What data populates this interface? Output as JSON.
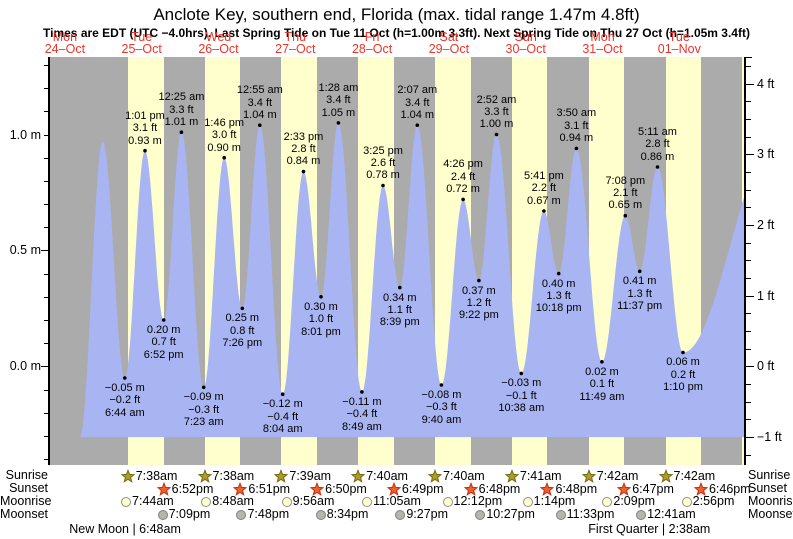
{
  "header": {
    "title": "Anclote Key, southern end, Florida (max. tidal range 1.47m 4.8ft)",
    "subtitle": "Times are EDT (UTC −4.0hrs). Last Spring Tide on Tue 11 Oct (h=1.00m 3.3ft). Next Spring Tide on Thu 27 Oct (h=1.05m 3.4ft)"
  },
  "days": [
    {
      "name": "Mon",
      "date": "24–Oct"
    },
    {
      "name": "Tue",
      "date": "25–Oct"
    },
    {
      "name": "Wed",
      "date": "26–Oct"
    },
    {
      "name": "Thu",
      "date": "27–Oct"
    },
    {
      "name": "Fri",
      "date": "28–Oct"
    },
    {
      "name": "Sat",
      "date": "29–Oct"
    },
    {
      "name": "Sun",
      "date": "30–Oct"
    },
    {
      "name": "Mon",
      "date": "31–Oct"
    },
    {
      "name": "Tue",
      "date": "01–Nov"
    }
  ],
  "chart_data": {
    "type": "area",
    "title": "Anclote Key, southern end, Florida tide curve",
    "x_axis": {
      "label": "days, Mon 24-Oct to Tue 01-Nov; t = hours after Mon 24-Oct 00:00",
      "grid": false
    },
    "y_axis_left": {
      "unit": "m",
      "labels": [
        {
          "v": 1.0,
          "text": "1.0 m"
        },
        {
          "v": 0.5,
          "text": "0.5 m"
        },
        {
          "v": 0.0,
          "text": "0.0 m"
        }
      ],
      "minor_step": 0.1,
      "range_m": [
        -0.43,
        1.33
      ]
    },
    "y_axis_right": {
      "unit": "ft",
      "labels": [
        {
          "v": 4,
          "text": "4 ft"
        },
        {
          "v": 3,
          "text": "3 ft"
        },
        {
          "v": 2,
          "text": "2 ft"
        },
        {
          "v": 1,
          "text": "1 ft"
        },
        {
          "v": 0,
          "text": "0 ft"
        },
        {
          "v": -1,
          "text": "−1 ft"
        }
      ],
      "minor_step": 0.25
    },
    "baseline_m": -0.305,
    "curve_start": {
      "t": 16.7,
      "v": -0.305
    },
    "tide_events": [
      {
        "t": 23.83,
        "v": 0.97,
        "type": "high",
        "labeled": false,
        "lines": []
      },
      {
        "t": 30.73,
        "v": -0.05,
        "type": "low",
        "labeled": true,
        "lines": [
          "−0.05 m",
          "−0.2 ft",
          "6:44 am"
        ]
      },
      {
        "t": 37.02,
        "v": 0.93,
        "type": "high",
        "labeled": true,
        "lines": [
          "1:01 pm",
          "3.1 ft",
          "0.93 m"
        ]
      },
      {
        "t": 42.87,
        "v": 0.2,
        "type": "low",
        "labeled": true,
        "lines": [
          "0.20 m",
          "0.7 ft",
          "6:52 pm"
        ]
      },
      {
        "t": 48.42,
        "v": 1.01,
        "type": "high",
        "labeled": true,
        "lines": [
          "12:25 am",
          "3.3 ft",
          "1.01 m"
        ]
      },
      {
        "t": 55.38,
        "v": -0.09,
        "type": "low",
        "labeled": true,
        "lines": [
          "−0.09 m",
          "−0.3 ft",
          "7:23 am"
        ]
      },
      {
        "t": 61.77,
        "v": 0.9,
        "type": "high",
        "labeled": true,
        "lines": [
          "1:46 pm",
          "3.0 ft",
          "0.90 m"
        ]
      },
      {
        "t": 67.43,
        "v": 0.25,
        "type": "low",
        "labeled": true,
        "lines": [
          "0.25 m",
          "0.8 ft",
          "7:26 pm"
        ]
      },
      {
        "t": 72.92,
        "v": 1.04,
        "type": "high",
        "labeled": true,
        "lines": [
          "12:55 am",
          "3.4 ft",
          "1.04 m"
        ]
      },
      {
        "t": 80.07,
        "v": -0.12,
        "type": "low",
        "labeled": true,
        "lines": [
          "−0.12 m",
          "−0.4 ft",
          "8:04 am"
        ]
      },
      {
        "t": 86.55,
        "v": 0.84,
        "type": "high",
        "labeled": true,
        "lines": [
          "2:33 pm",
          "2.8 ft",
          "0.84 m"
        ]
      },
      {
        "t": 92.02,
        "v": 0.3,
        "type": "low",
        "labeled": true,
        "lines": [
          "0.30 m",
          "1.0 ft",
          "8:01 pm"
        ]
      },
      {
        "t": 97.47,
        "v": 1.05,
        "type": "high",
        "labeled": true,
        "lines": [
          "1:28 am",
          "3.4 ft",
          "1.05 m"
        ]
      },
      {
        "t": 104.82,
        "v": -0.11,
        "type": "low",
        "labeled": true,
        "lines": [
          "−0.11 m",
          "−0.4 ft",
          "8:49 am"
        ]
      },
      {
        "t": 111.42,
        "v": 0.78,
        "type": "high",
        "labeled": true,
        "lines": [
          "3:25 pm",
          "2.6 ft",
          "0.78 m"
        ]
      },
      {
        "t": 116.65,
        "v": 0.34,
        "type": "low",
        "labeled": true,
        "lines": [
          "0.34 m",
          "1.1 ft",
          "8:39 pm"
        ]
      },
      {
        "t": 122.12,
        "v": 1.04,
        "type": "high",
        "labeled": true,
        "lines": [
          "2:07 am",
          "3.4 ft",
          "1.04 m"
        ]
      },
      {
        "t": 129.67,
        "v": -0.08,
        "type": "low",
        "labeled": true,
        "lines": [
          "−0.08 m",
          "−0.3 ft",
          "9:40 am"
        ]
      },
      {
        "t": 136.43,
        "v": 0.72,
        "type": "high",
        "labeled": true,
        "lines": [
          "4:26 pm",
          "2.4 ft",
          "0.72 m"
        ]
      },
      {
        "t": 141.37,
        "v": 0.37,
        "type": "low",
        "labeled": true,
        "lines": [
          "0.37 m",
          "1.2 ft",
          "9:22 pm"
        ]
      },
      {
        "t": 146.87,
        "v": 1.0,
        "type": "high",
        "labeled": true,
        "lines": [
          "2:52 am",
          "3.3 ft",
          "1.00 m"
        ]
      },
      {
        "t": 154.63,
        "v": -0.03,
        "type": "low",
        "labeled": true,
        "lines": [
          "−0.03 m",
          "−0.1 ft",
          "10:38 am"
        ]
      },
      {
        "t": 161.68,
        "v": 0.67,
        "type": "high",
        "labeled": true,
        "lines": [
          "5:41 pm",
          "2.2 ft",
          "0.67 m"
        ]
      },
      {
        "t": 166.3,
        "v": 0.4,
        "type": "low",
        "labeled": true,
        "lines": [
          "0.40 m",
          "1.3 ft",
          "10:18 pm"
        ]
      },
      {
        "t": 171.83,
        "v": 0.94,
        "type": "high",
        "labeled": true,
        "lines": [
          "3:50 am",
          "3.1 ft",
          "0.94 m"
        ]
      },
      {
        "t": 179.82,
        "v": 0.02,
        "type": "low",
        "labeled": true,
        "lines": [
          "0.02 m",
          "0.1 ft",
          "11:49 am"
        ]
      },
      {
        "t": 187.13,
        "v": 0.65,
        "type": "high",
        "labeled": true,
        "lines": [
          "7:08 pm",
          "2.1 ft",
          "0.65 m"
        ]
      },
      {
        "t": 191.62,
        "v": 0.41,
        "type": "low",
        "labeled": true,
        "lines": [
          "0.41 m",
          "1.3 ft",
          "11:37 pm"
        ]
      },
      {
        "t": 197.18,
        "v": 0.86,
        "type": "high",
        "labeled": true,
        "lines": [
          "5:11 am",
          "2.8 ft",
          "0.86 m"
        ]
      },
      {
        "t": 205.17,
        "v": 0.06,
        "type": "low",
        "labeled": true,
        "lines": [
          "0.06 m",
          "0.2 ft",
          "1:10 pm"
        ]
      },
      {
        "t": 235.0,
        "v": 1.0,
        "type": "high",
        "labeled": false,
        "lines": []
      }
    ],
    "partial_daylight_end": {
      "t1": 223.72,
      "t2": 225.0
    }
  },
  "sun_moon": {
    "row_labels": [
      "Sunrise",
      "Sunset",
      "Moonrise",
      "Moonset"
    ],
    "sunrise": [
      {
        "t": 31.633,
        "time": "7:38am"
      },
      {
        "t": 55.633,
        "time": "7:38am"
      },
      {
        "t": 79.65,
        "time": "7:39am"
      },
      {
        "t": 103.667,
        "time": "7:40am"
      },
      {
        "t": 127.667,
        "time": "7:40am"
      },
      {
        "t": 151.683,
        "time": "7:41am"
      },
      {
        "t": 175.7,
        "time": "7:42am"
      },
      {
        "t": 199.7,
        "time": "7:42am"
      }
    ],
    "sunset": [
      {
        "t": 42.867,
        "time": "6:52pm"
      },
      {
        "t": 66.85,
        "time": "6:51pm"
      },
      {
        "t": 90.833,
        "time": "6:50pm"
      },
      {
        "t": 114.817,
        "time": "6:49pm"
      },
      {
        "t": 138.8,
        "time": "6:48pm"
      },
      {
        "t": 162.8,
        "time": "6:48pm"
      },
      {
        "t": 186.783,
        "time": "6:47pm"
      },
      {
        "t": 210.767,
        "time": "6:46pm"
      }
    ],
    "moonrise": [
      {
        "t": 31.733,
        "time": "7:44am"
      },
      {
        "t": 56.8,
        "time": "8:48am"
      },
      {
        "t": 81.933,
        "time": "9:56am"
      },
      {
        "t": 107.083,
        "time": "11:05am"
      },
      {
        "t": 132.2,
        "time": "12:12pm"
      },
      {
        "t": 157.233,
        "time": "1:14pm"
      },
      {
        "t": 182.15,
        "time": "2:09pm"
      },
      {
        "t": 206.933,
        "time": "2:56pm"
      }
    ],
    "moonset": [
      {
        "t": 43.15,
        "time": "7:09pm"
      },
      {
        "t": 67.8,
        "time": "7:48pm"
      },
      {
        "t": 92.567,
        "time": "8:34pm"
      },
      {
        "t": 117.45,
        "time": "9:27pm"
      },
      {
        "t": 142.45,
        "time": "10:27pm"
      },
      {
        "t": 167.55,
        "time": "11:33pm"
      },
      {
        "t": 192.683,
        "time": "12:41am"
      }
    ],
    "phases": [
      {
        "label": "New Moon | 6:48am",
        "t": 30.8
      },
      {
        "label": "First Quarter | 2:38am",
        "t": 194.63
      }
    ]
  },
  "colors": {
    "night_gray": "#ababab",
    "daylight_yellow": "#ffffce",
    "water_blue": "#a8b5f2",
    "day_label_red": "#e8352b",
    "text_black": "#000000",
    "sunrise_star_fill": "#ad9d26",
    "sunrise_star_stroke": "#756a14",
    "sunset_star_fill": "#e8642c",
    "sunset_star_stroke": "#cd2910",
    "moonrise_fill": "#ffffce",
    "moonrise_stroke": "#8f8f8f",
    "moonset_fill": "#b5b5ad",
    "moonset_stroke": "#808080"
  }
}
